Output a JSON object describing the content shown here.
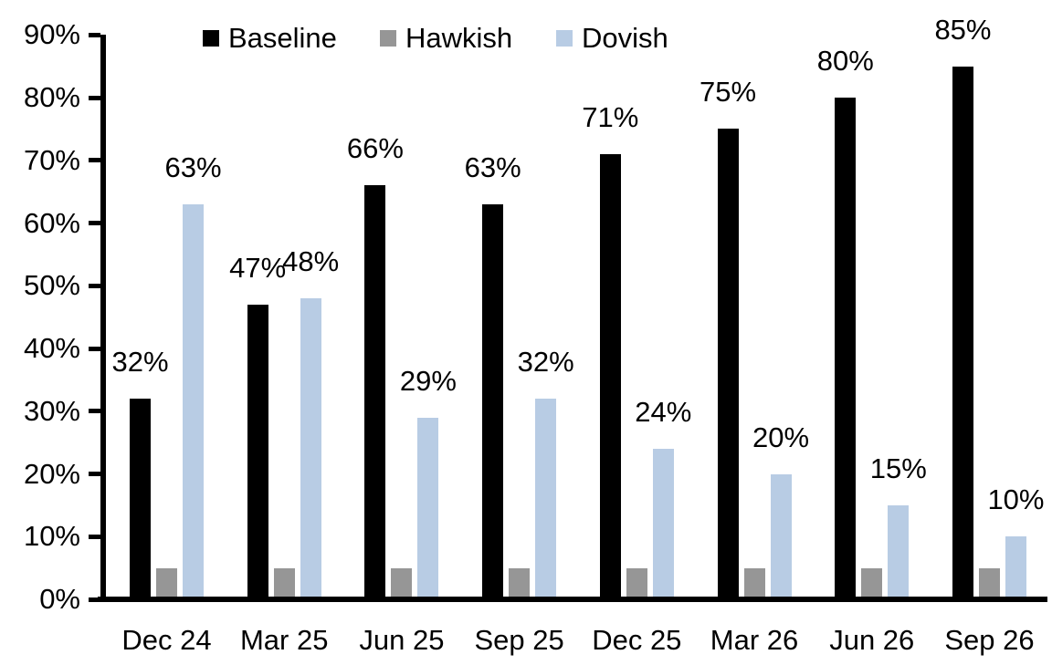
{
  "chart_data": {
    "type": "bar",
    "title": "",
    "xlabel": "",
    "ylabel": "",
    "categories": [
      "Dec 24",
      "Mar 25",
      "Jun 25",
      "Sep 25",
      "Dec 25",
      "Mar 26",
      "Jun 26",
      "Sep 26"
    ],
    "series": [
      {
        "name": "Baseline",
        "color": "#000000",
        "values": [
          32,
          47,
          66,
          63,
          71,
          75,
          80,
          85
        ],
        "point_labels": [
          "32%",
          "47%",
          "66%",
          "63%",
          "71%",
          "75%",
          "80%",
          "85%"
        ]
      },
      {
        "name": "Hawkish",
        "color": "#969696",
        "values": [
          5,
          5,
          5,
          5,
          5,
          5,
          5,
          5
        ],
        "point_labels": [
          "",
          "",
          "",
          "",
          "",
          "",
          "",
          ""
        ]
      },
      {
        "name": "Dovish",
        "color": "#b8cce4",
        "values": [
          63,
          48,
          29,
          32,
          24,
          20,
          15,
          10
        ],
        "point_labels": [
          "63%",
          "48%",
          "29%",
          "32%",
          "24%",
          "20%",
          "15%",
          "10%"
        ]
      }
    ],
    "y_axis": {
      "min": 0,
      "max": 90,
      "step": 10,
      "tick_labels": [
        "0%",
        "10%",
        "20%",
        "30%",
        "40%",
        "50%",
        "60%",
        "70%",
        "80%",
        "90%"
      ]
    },
    "ylim": [
      0,
      90
    ],
    "grid": false,
    "legend": {
      "position": "top",
      "entries": [
        "Baseline",
        "Hawkish",
        "Dovish"
      ]
    },
    "axis_color": "#000000",
    "background_color": "#ffffff"
  }
}
